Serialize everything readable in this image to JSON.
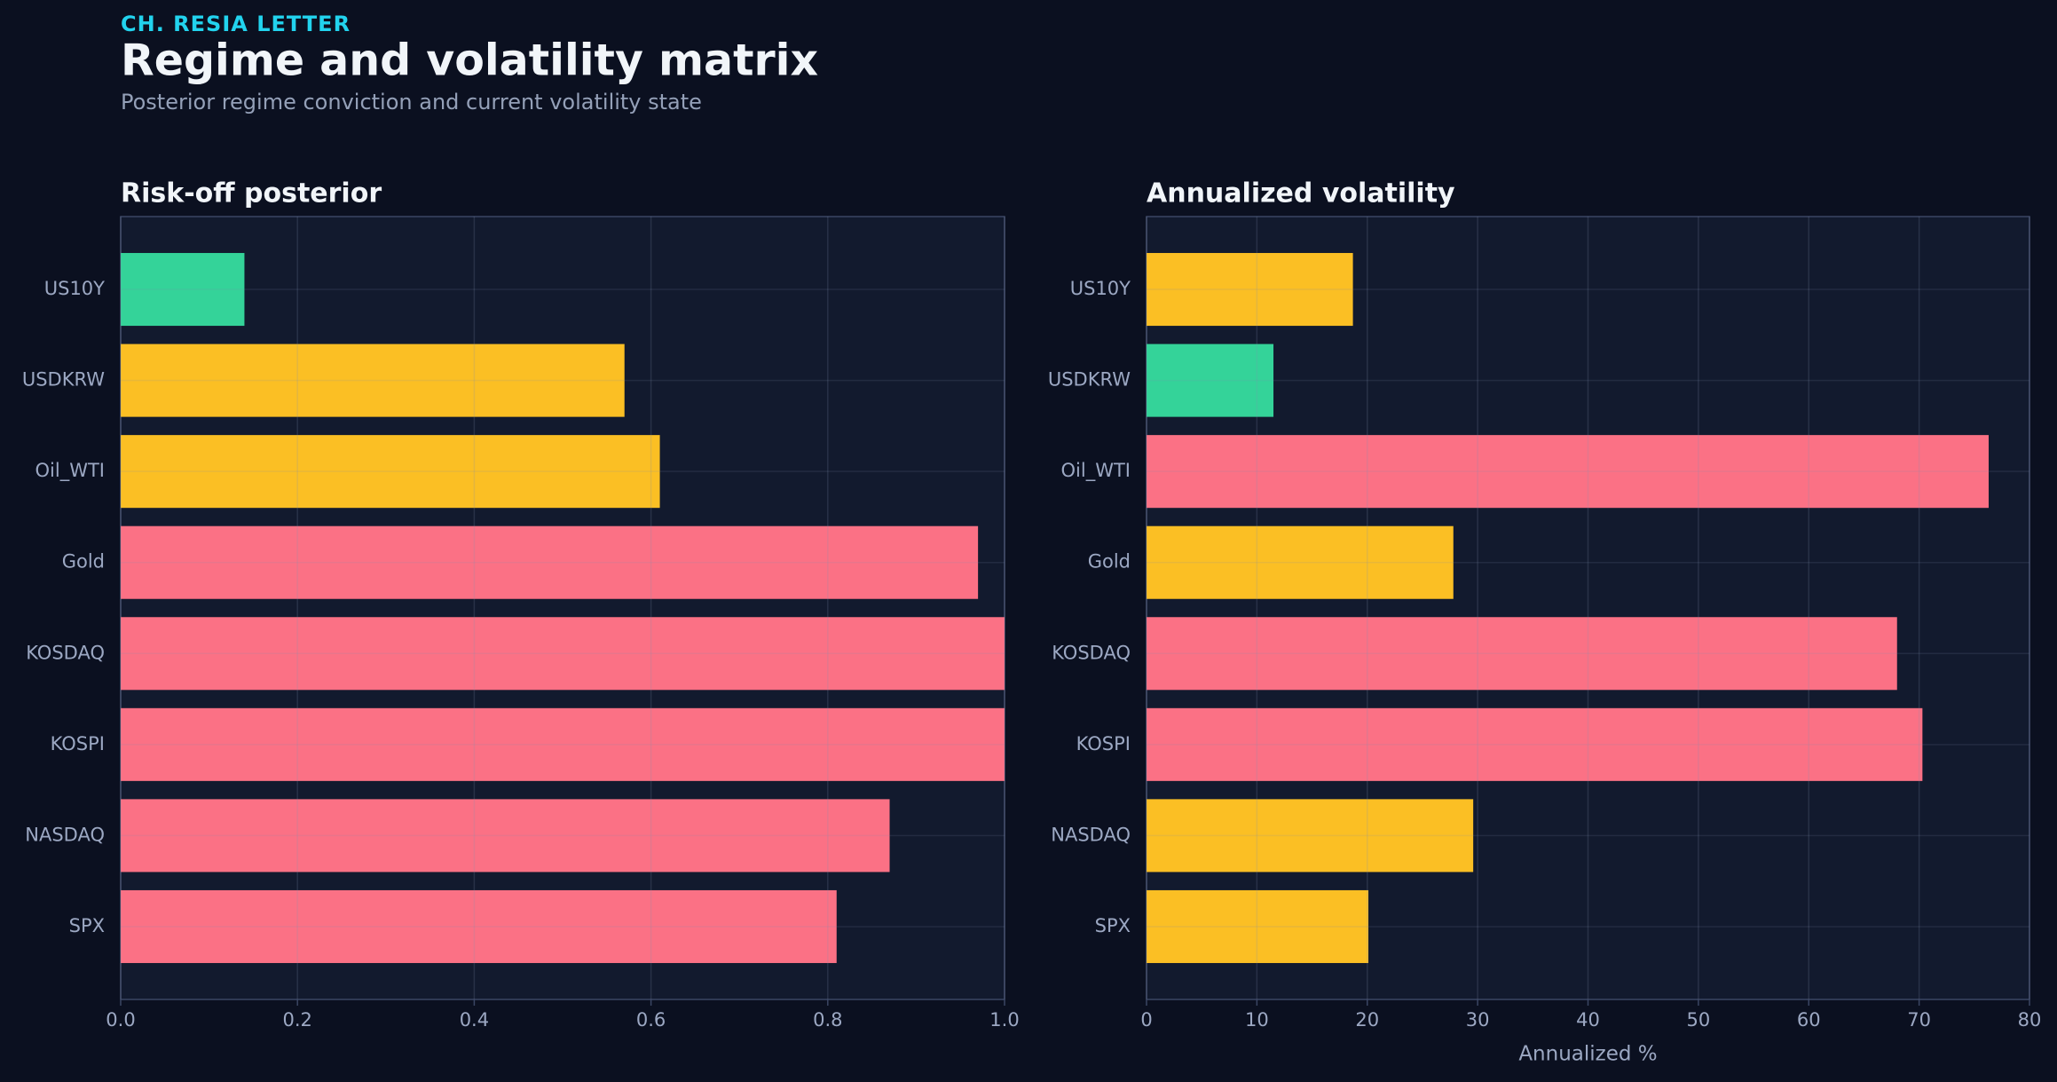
{
  "header": {
    "kicker": "CH. RESIA LETTER",
    "title": "Regime and volatility matrix",
    "subtitle": "Posterior regime conviction and current volatility state"
  },
  "chart_data": [
    {
      "type": "barh",
      "title": "Risk-off posterior",
      "categories": [
        "US10Y",
        "USDKRW",
        "Oil_WTI",
        "Gold",
        "KOSDAQ",
        "KOSPI",
        "NASDAQ",
        "SPX"
      ],
      "values": [
        0.14,
        0.57,
        0.61,
        0.97,
        1.0,
        1.0,
        0.87,
        0.81
      ],
      "colors": [
        "#34d399",
        "#fbbf24",
        "#fbbf24",
        "#fb7185",
        "#fb7185",
        "#fb7185",
        "#fb7185",
        "#fb7185"
      ],
      "xlim": [
        0,
        1
      ],
      "xticks": [
        {
          "value": 0,
          "label": "0.0"
        },
        0.2,
        0.4,
        0.6,
        0.8,
        {
          "value": 1,
          "label": "1.0"
        }
      ],
      "grid": true
    },
    {
      "type": "barh",
      "title": "Annualized volatility",
      "categories": [
        "US10Y",
        "USDKRW",
        "Oil_WTI",
        "Gold",
        "KOSDAQ",
        "KOSPI",
        "NASDAQ",
        "SPX"
      ],
      "values": [
        18.7,
        11.5,
        76.3,
        27.8,
        68.0,
        70.3,
        29.6,
        20.1
      ],
      "colors": [
        "#fbbf24",
        "#34d399",
        "#fb7185",
        "#fbbf24",
        "#fb7185",
        "#fb7185",
        "#fbbf24",
        "#fbbf24"
      ],
      "xlim": [
        0,
        80
      ],
      "xticks": [
        0,
        10,
        20,
        30,
        40,
        50,
        60,
        70,
        80
      ],
      "xlabel": "Annualized %",
      "grid": true
    }
  ]
}
